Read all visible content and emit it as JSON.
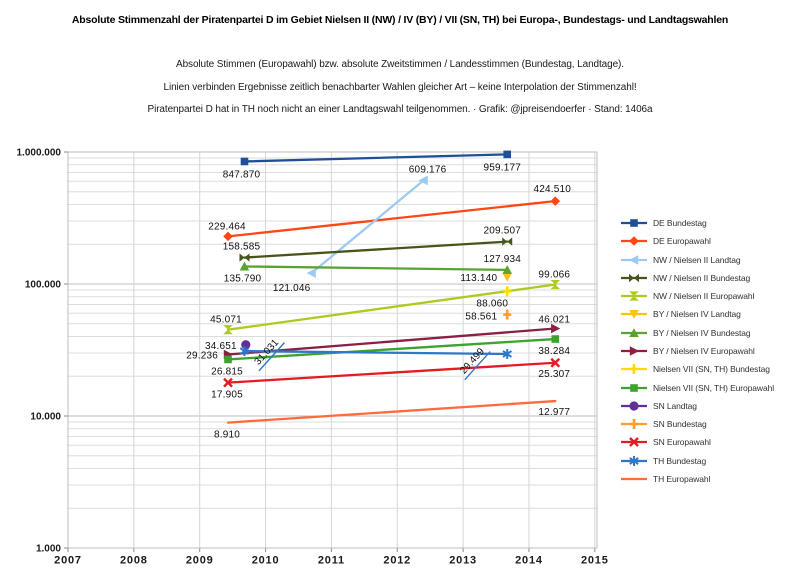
{
  "title": "Absolute Stimmenzahl der Piratenpartei D im Gebiet Nielsen II (NW) / IV (BY) / VII (SN, TH)  bei Europa-, Bundestags- und Landtagswahlen",
  "subtitles": [
    "Absolute Stimmen (Europawahl) bzw. absolute Zweitstimmen / Landesstimmen (Bundestag, Landtage).",
    "Linien verbinden Ergebnisse zeitlich benachbarter Wahlen gleicher Art – keine Interpolation der Stimmenzahl!",
    "Piratenpartei D hat in TH noch nicht an einer Landtagswahl teilgenommen. · Grafik: @jpreisendoerfer · Stand: 1406a"
  ],
  "chart_data": {
    "type": "line",
    "title": "Absolute Stimmenzahl der Piratenpartei D",
    "xlabel": "",
    "ylabel": "",
    "x_axis": {
      "ticks": [
        "2007",
        "2008",
        "2009",
        "2010",
        "2011",
        "2012",
        "2013",
        "2014",
        "2015"
      ],
      "range": [
        2007,
        2015.35
      ]
    },
    "y_axis": {
      "scale": "log",
      "tick_labels": [
        "1.000",
        "10.000",
        "100.000",
        "1.000.000"
      ],
      "tick_values": [
        1000,
        10000,
        100000,
        1000000
      ],
      "range": [
        1000,
        1000000
      ]
    },
    "grid": true,
    "legend_position": "right",
    "series": [
      {
        "name": "DE Bundestag",
        "color": "#1F5096",
        "marker": "square",
        "points": [
          {
            "x": 2009.68,
            "v": 847870,
            "label": "847.870",
            "off": [
              -3,
              16
            ],
            "anc": "middle"
          },
          {
            "x": 2013.67,
            "v": 959177,
            "label": "959.177",
            "off": [
              -5,
              16
            ],
            "anc": "middle"
          }
        ]
      },
      {
        "name": "DE Europawahl",
        "color": "#FF4713",
        "marker": "diamond",
        "points": [
          {
            "x": 2009.43,
            "v": 229464,
            "label": "229.464",
            "off": [
              -1,
              -7
            ],
            "anc": "middle"
          },
          {
            "x": 2014.4,
            "v": 424510,
            "label": "424.510",
            "off": [
              -3,
              -9
            ],
            "anc": "middle"
          }
        ]
      },
      {
        "name": "NW / Nielsen II Landtag",
        "color": "#9DC9F2",
        "marker": "tri-left",
        "points": [
          {
            "x": 2010.7,
            "v": 121046,
            "label": "121.046",
            "off": [
              -20,
              18
            ],
            "anc": "middle"
          },
          {
            "x": 2012.4,
            "v": 609176,
            "label": "609.176",
            "off": [
              4,
              -8
            ],
            "anc": "middle"
          }
        ]
      },
      {
        "name": "NW / Nielsen II Bundestag",
        "color": "#47551A",
        "marker": "bowtie-h",
        "points": [
          {
            "x": 2009.68,
            "v": 158585,
            "label": "158.585",
            "off": [
              -3,
              -8
            ],
            "anc": "middle"
          },
          {
            "x": 2013.67,
            "v": 209507,
            "label": "209.507",
            "off": [
              -5,
              -8
            ],
            "anc": "middle"
          }
        ]
      },
      {
        "name": "NW / Nielsen II Europawahl",
        "color": "#AFCA1E",
        "marker": "bowtie-v",
        "points": [
          {
            "x": 2009.43,
            "v": 45071,
            "label": "45.071",
            "off": [
              -2,
              -7
            ],
            "anc": "middle"
          },
          {
            "x": 2014.4,
            "v": 99066,
            "label": "99.066",
            "off": [
              -1,
              -7
            ],
            "anc": "middle"
          }
        ]
      },
      {
        "name": "BY / Nielsen IV Landtag",
        "color": "#FFC20E",
        "marker": "tri-down",
        "points": [
          {
            "x": 2013.67,
            "v": 113140,
            "label": "113.140",
            "off": [
              -10,
              4
            ],
            "anc": "end"
          }
        ]
      },
      {
        "name": "BY / Nielsen IV Bundestag",
        "color": "#58A331",
        "marker": "tri-up",
        "points": [
          {
            "x": 2009.68,
            "v": 135790,
            "label": "135.790",
            "off": [
              -2,
              15
            ],
            "anc": "middle"
          },
          {
            "x": 2013.67,
            "v": 127934,
            "label": "127.934",
            "off": [
              -5,
              -8
            ],
            "anc": "middle"
          }
        ]
      },
      {
        "name": "BY / Nielsen IV Europawahl",
        "color": "#8C1F42",
        "marker": "tri-right",
        "points": [
          {
            "x": 2009.43,
            "v": 29236,
            "label": "29.236",
            "off": [
              -10,
              4
            ],
            "anc": "end"
          },
          {
            "x": 2014.4,
            "v": 46021,
            "label": "46.021",
            "off": [
              -1,
              -6
            ],
            "anc": "middle"
          }
        ]
      },
      {
        "name": "Nielsen VII (SN, TH) Bundestag",
        "color": "#FFDB00",
        "marker": "plus",
        "points": [
          {
            "x": 2013.67,
            "v": 88060,
            "label": "88.060",
            "off": [
              -15,
              15
            ],
            "anc": "middle"
          }
        ]
      },
      {
        "name": "Nielsen VII (SN, TH) Europawahl",
        "color": "#3EA32E",
        "marker": "square",
        "points": [
          {
            "x": 2009.43,
            "v": 26815,
            "label": "26.815",
            "off": [
              -1,
              15
            ],
            "anc": "middle"
          },
          {
            "x": 2014.4,
            "v": 38284,
            "label": "38.284",
            "off": [
              -1,
              15
            ],
            "anc": "middle"
          }
        ]
      },
      {
        "name": "SN Landtag",
        "color": "#603099",
        "marker": "circle",
        "points": [
          {
            "x": 2009.7,
            "v": 34651,
            "label": "34.651",
            "off": [
              -9,
              4
            ],
            "anc": "end"
          }
        ]
      },
      {
        "name": "SN Bundestag",
        "color": "#FF9E2C",
        "marker": "plus",
        "points": [
          {
            "x": 2013.67,
            "v": 58561,
            "label": "58.561",
            "off": [
              -10,
              5
            ],
            "anc": "end"
          }
        ]
      },
      {
        "name": "SN Europawahl",
        "color": "#E51B24",
        "marker": "x",
        "points": [
          {
            "x": 2009.43,
            "v": 17905,
            "label": "17.905",
            "off": [
              -1,
              15
            ],
            "anc": "middle"
          },
          {
            "x": 2014.4,
            "v": 25307,
            "label": "25.307",
            "off": [
              -1,
              14
            ],
            "anc": "middle"
          }
        ]
      },
      {
        "name": "TH Bundestag",
        "color": "#2F78C8",
        "marker": "asterisk",
        "points": [
          {
            "x": 2009.68,
            "v": 31031,
            "label": "31.031",
            "off": [
              22,
              1
            ],
            "anc": "middle",
            "rot": -48,
            "leader": true
          },
          {
            "x": 2013.67,
            "v": 29499,
            "label": "29.499",
            "off": [
              -35,
              7
            ],
            "anc": "middle",
            "rot": -48,
            "leader": true
          }
        ]
      },
      {
        "name": "TH Europawahl",
        "color": "#FF6B3B",
        "marker": "none",
        "points": [
          {
            "x": 2009.43,
            "v": 8910,
            "label": "8.910",
            "off": [
              -1,
              15
            ],
            "anc": "middle"
          },
          {
            "x": 2014.4,
            "v": 12977,
            "label": "12.977",
            "off": [
              -1,
              14
            ],
            "anc": "middle"
          }
        ]
      }
    ]
  }
}
